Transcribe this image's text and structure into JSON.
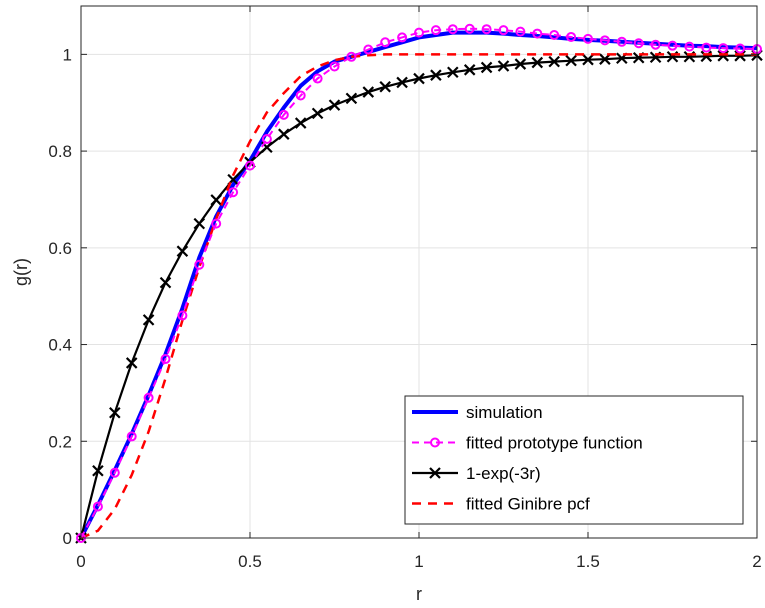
{
  "chart_data": {
    "type": "line",
    "xlabel": "r",
    "ylabel": "g(r)",
    "xlim": [
      0,
      2
    ],
    "ylim": [
      0,
      1.1
    ],
    "x_ticks": [
      0,
      0.5,
      1,
      1.5,
      2
    ],
    "x_tick_labels": [
      "0",
      "0.5",
      "1",
      "1.5",
      "2"
    ],
    "y_ticks": [
      0,
      0.2,
      0.4,
      0.6,
      0.8,
      1
    ],
    "y_tick_labels": [
      "0",
      "0.2",
      "0.4",
      "0.6",
      "0.8",
      "1"
    ],
    "grid": true,
    "legend_position": "bottom-right",
    "x": [
      0,
      0.05,
      0.1,
      0.15,
      0.2,
      0.25,
      0.3,
      0.35,
      0.4,
      0.45,
      0.5,
      0.55,
      0.6,
      0.65,
      0.7,
      0.75,
      0.8,
      0.85,
      0.9,
      0.95,
      1.0,
      1.05,
      1.1,
      1.15,
      1.2,
      1.25,
      1.3,
      1.35,
      1.4,
      1.45,
      1.5,
      1.55,
      1.6,
      1.65,
      1.7,
      1.75,
      1.8,
      1.85,
      1.9,
      1.95,
      2.0
    ],
    "series": [
      {
        "name": "simulation",
        "color": "#0000ff",
        "style": "solid-thick",
        "values": [
          0,
          0.068,
          0.14,
          0.215,
          0.295,
          0.38,
          0.475,
          0.58,
          0.665,
          0.73,
          0.78,
          0.84,
          0.89,
          0.935,
          0.965,
          0.985,
          0.995,
          1.005,
          1.015,
          1.025,
          1.035,
          1.04,
          1.045,
          1.045,
          1.045,
          1.043,
          1.04,
          1.038,
          1.035,
          1.032,
          1.03,
          1.028,
          1.026,
          1.024,
          1.022,
          1.02,
          1.018,
          1.017,
          1.015,
          1.014,
          1.013
        ]
      },
      {
        "name": "fitted prototype function",
        "color": "#ff00ff",
        "style": "dashed-circles",
        "values": [
          0,
          0.065,
          0.135,
          0.21,
          0.29,
          0.37,
          0.46,
          0.565,
          0.65,
          0.715,
          0.77,
          0.825,
          0.875,
          0.915,
          0.95,
          0.975,
          0.995,
          1.01,
          1.025,
          1.035,
          1.045,
          1.05,
          1.052,
          1.053,
          1.052,
          1.05,
          1.047,
          1.043,
          1.04,
          1.036,
          1.032,
          1.029,
          1.026,
          1.023,
          1.02,
          1.018,
          1.016,
          1.014,
          1.013,
          1.012,
          1.011
        ]
      },
      {
        "name": "1-exp(-3r)",
        "color": "#000000",
        "style": "solid-x",
        "values": [
          0,
          0.139,
          0.259,
          0.362,
          0.451,
          0.528,
          0.593,
          0.65,
          0.699,
          0.741,
          0.777,
          0.808,
          0.835,
          0.858,
          0.878,
          0.895,
          0.909,
          0.922,
          0.933,
          0.942,
          0.95,
          0.957,
          0.963,
          0.968,
          0.973,
          0.976,
          0.98,
          0.983,
          0.985,
          0.987,
          0.989,
          0.99,
          0.992,
          0.993,
          0.994,
          0.995,
          0.995,
          0.996,
          0.997,
          0.997,
          0.998
        ]
      },
      {
        "name": "fitted Ginibre pcf",
        "color": "#ff0000",
        "style": "dashed",
        "values": [
          0,
          0.015,
          0.06,
          0.13,
          0.22,
          0.33,
          0.45,
          0.56,
          0.66,
          0.75,
          0.82,
          0.88,
          0.92,
          0.955,
          0.975,
          0.988,
          0.995,
          0.998,
          1.0,
          1.0,
          1.0,
          1.0,
          1.0,
          1.0,
          1.0,
          1.0,
          1.0,
          1.0,
          1.0,
          1.0,
          1.0,
          1.0,
          1.0,
          1.0,
          1.0,
          1.0,
          1.0,
          1.0,
          1.0,
          1.0,
          1.0
        ]
      }
    ]
  }
}
